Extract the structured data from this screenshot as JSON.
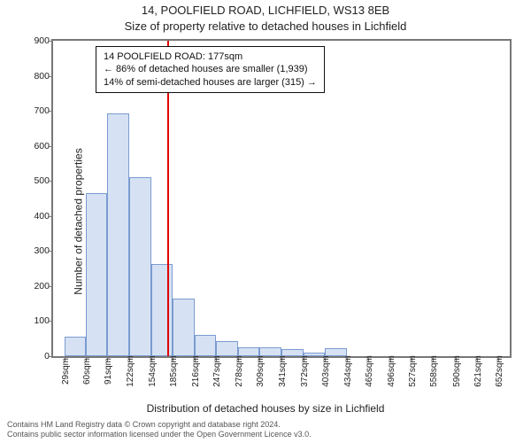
{
  "titles": {
    "address": "14, POOLFIELD ROAD, LICHFIELD, WS13 8EB",
    "subtitle": "Size of property relative to detached houses in Lichfield"
  },
  "axes": {
    "ylabel": "Number of detached properties",
    "xlabel": "Distribution of detached houses by size in Lichfield",
    "ylim": [
      0,
      900
    ],
    "ytick_step": 100,
    "xticks_sqm": [
      29,
      60,
      91,
      122,
      154,
      185,
      216,
      247,
      278,
      309,
      341,
      372,
      403,
      434,
      465,
      496,
      527,
      558,
      590,
      621,
      652
    ],
    "xlim_sqm": [
      13,
      668
    ]
  },
  "histogram": {
    "type": "histogram",
    "bar_fill": "#d6e2f3",
    "bar_stroke": "#7a9bd1",
    "bars": [
      {
        "x0": 29,
        "x1": 60,
        "count": 55
      },
      {
        "x0": 60,
        "x1": 91,
        "count": 465
      },
      {
        "x0": 91,
        "x1": 122,
        "count": 694
      },
      {
        "x0": 122,
        "x1": 154,
        "count": 510
      },
      {
        "x0": 154,
        "x1": 185,
        "count": 263
      },
      {
        "x0": 185,
        "x1": 216,
        "count": 165
      },
      {
        "x0": 216,
        "x1": 247,
        "count": 60
      },
      {
        "x0": 247,
        "x1": 278,
        "count": 42
      },
      {
        "x0": 278,
        "x1": 309,
        "count": 26
      },
      {
        "x0": 309,
        "x1": 341,
        "count": 25
      },
      {
        "x0": 341,
        "x1": 372,
        "count": 20
      },
      {
        "x0": 372,
        "x1": 403,
        "count": 10
      },
      {
        "x0": 403,
        "x1": 434,
        "count": 22
      },
      {
        "x0": 434,
        "x1": 465,
        "count": 0
      },
      {
        "x0": 465,
        "x1": 496,
        "count": 0
      },
      {
        "x0": 496,
        "x1": 527,
        "count": 0
      },
      {
        "x0": 527,
        "x1": 558,
        "count": 0
      },
      {
        "x0": 558,
        "x1": 590,
        "count": 0
      },
      {
        "x0": 590,
        "x1": 621,
        "count": 0
      },
      {
        "x0": 621,
        "x1": 652,
        "count": 0
      }
    ]
  },
  "marker": {
    "sqm": 177,
    "color": "#e10000"
  },
  "annotation": {
    "line1": "14 POOLFIELD ROAD: 177sqm",
    "line2": "← 86% of detached houses are smaller (1,939)",
    "line3": "14% of semi-detached houses are larger (315) →"
  },
  "footer": {
    "line1": "Contains HM Land Registry data © Crown copyright and database right 2024.",
    "line2": "Contains public sector information licensed under the Open Government Licence v3.0."
  },
  "style": {
    "axis_border": "#777777",
    "tick_font_size": 10,
    "title_font_size": 13,
    "label_font_size": 12,
    "background": "#ffffff"
  }
}
